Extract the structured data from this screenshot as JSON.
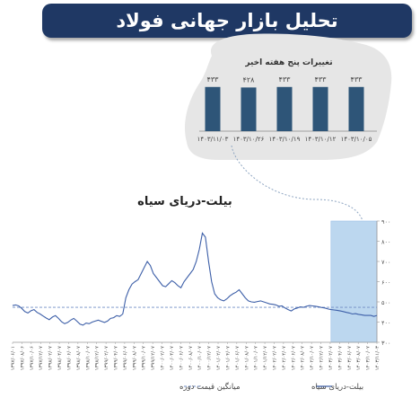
{
  "header": {
    "title": "تحلیل بازار جهانی فولاد"
  },
  "colors": {
    "primary": "#1f3864",
    "bar": "#2e5578",
    "line": "#3d5fa8",
    "mean_line": "#6f8cc4",
    "highlight": "#bcd7ef",
    "inset_bg": "#e6e6e6"
  },
  "chart_data": [
    {
      "type": "bar",
      "title": "تغییرات پنج هفته اخیر",
      "categories": [
        "۱۴۰۳/۱۰/۰۵",
        "۱۴۰۳/۱۰/۱۲",
        "۱۴۰۳/۱۰/۱۹",
        "۱۴۰۳/۱۰/۲۶",
        "۱۴۰۳/۱۱/۰۳"
      ],
      "values": [
        433,
        433,
        433,
        428,
        433
      ],
      "value_labels": [
        "۴۳۳",
        "۴۳۳",
        "۴۳۳",
        "۴۲۸",
        "۴۳۳"
      ],
      "order": "right-to-left"
    },
    {
      "type": "line",
      "title": "بیلت-دریای سیاه",
      "ylim": [
        300,
        900
      ],
      "y_ticks": [
        300,
        400,
        500,
        600,
        700,
        800,
        900
      ],
      "y_tick_labels": [
        "۳۰۰",
        "۴۰۰",
        "۵۰۰",
        "۶۰۰",
        "۷۰۰",
        "۸۰۰",
        "۹۰۰"
      ],
      "x_tick_labels": [
        "۱۳۹۷/۰۶/۰۱",
        "۱۳۹۷/۰۸/۰۶",
        "۱۳۹۷/۱۰/۰۶",
        "۱۳۹۷/۱۲/۰۷",
        "۱۳۹۸/۰۲/۰۷",
        "۱۳۹۸/۰۴/۰۷",
        "۱۳۹۸/۰۶/۰۷",
        "۱۳۹۸/۰۸/۰۷",
        "۱۳۹۸/۱۰/۰۷",
        "۱۳۹۸/۱۲/۰۷",
        "۱۳۹۹/۰۲/۰۷",
        "۱۳۹۹/۰۴/۰۷",
        "۱۳۹۹/۰۶/۰۷",
        "۱۳۹۹/۰۸/۰۷",
        "۱۳۹۹/۱۰/۰۷",
        "۱۳۹۹/۱۲/۰۷",
        "۱۴۰۰/۰۲/۰۷",
        "۱۴۰۰/۰۴/۰۷",
        "۱۴۰۰/۰۶/۰۷",
        "۱۴۰۰/۰۸/۰۷",
        "۱۴۰۰/۱۰/۰۷",
        "۱۴۰۰/۱۲/۰۷",
        "۱۴۰۱/۰۲/۰۷",
        "۱۴۰۱/۰۴/۰۷",
        "۱۴۰۱/۰۶/۰۷",
        "۱۴۰۱/۰۸/۰۷",
        "۱۴۰۱/۱۰/۰۷",
        "۱۴۰۱/۱۲/۰۷",
        "۱۴۰۲/۰۲/۰۷",
        "۱۴۰۲/۰۴/۰۷",
        "۱۴۰۲/۰۶/۰۷",
        "۱۴۰۲/۰۸/۰۷",
        "۱۴۰۲/۱۰/۰۷",
        "۱۴۰۲/۱۲/۰۷",
        "۱۴۰۳/۰۲/۰۷",
        "۱۴۰۳/۰۴/۰۷",
        "۱۴۰۳/۰۶/۰۷",
        "۱۴۰۳/۰۸/۰۷",
        "۱۴۰۳/۱۰/۰۷",
        "۱۴۰۳/۱۱/۰۳"
      ],
      "series": [
        {
          "name": "بیلت-دریای سیاه",
          "values": [
            482,
            485,
            480,
            468,
            452,
            445,
            456,
            462,
            448,
            440,
            430,
            420,
            412,
            425,
            432,
            418,
            402,
            392,
            398,
            410,
            418,
            405,
            390,
            385,
            395,
            392,
            400,
            405,
            410,
            404,
            398,
            405,
            418,
            422,
            432,
            428,
            440,
            520,
            560,
            588,
            600,
            610,
            640,
            670,
            700,
            680,
            640,
            620,
            600,
            580,
            575,
            590,
            605,
            595,
            580,
            570,
            600,
            620,
            640,
            660,
            700,
            760,
            840,
            820,
            700,
            600,
            540,
            520,
            510,
            505,
            515,
            530,
            540,
            548,
            560,
            540,
            520,
            505,
            500,
            498,
            502,
            505,
            500,
            495,
            490,
            488,
            485,
            478,
            480,
            470,
            462,
            455,
            465,
            470,
            475,
            473,
            478,
            482,
            480,
            478,
            475,
            472,
            470,
            465,
            462,
            460,
            458,
            455,
            452,
            448,
            445,
            440,
            442,
            438,
            436,
            433,
            433,
            433,
            428,
            433
          ]
        },
        {
          "name": "میانگین قیمت دوره",
          "values": [
            473
          ],
          "style": "dashed"
        }
      ],
      "highlight_region": {
        "from_index": 104,
        "to_index": 119
      },
      "legend": {
        "position": "bottom"
      }
    }
  ]
}
